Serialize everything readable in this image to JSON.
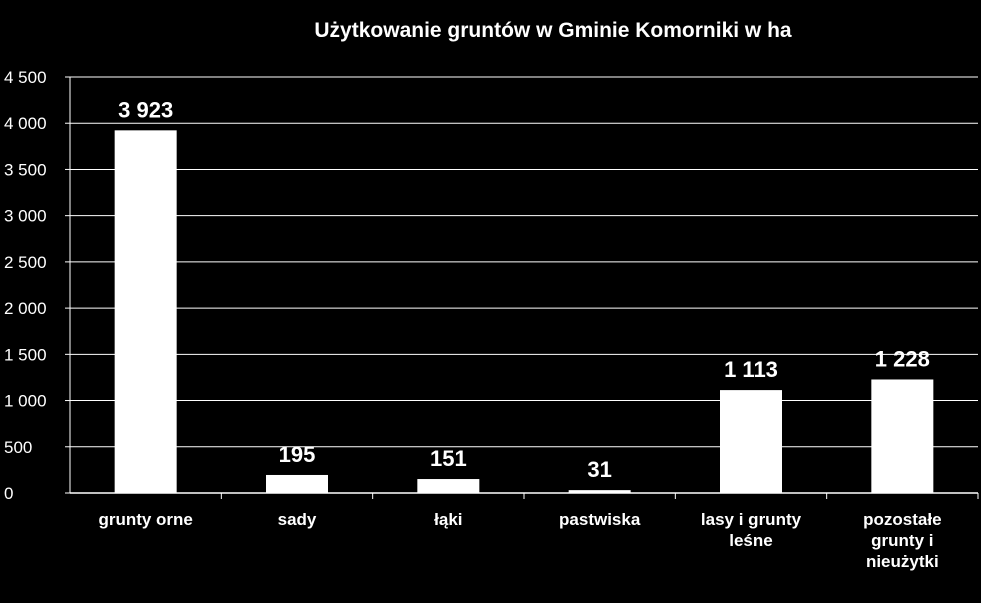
{
  "chart_data": {
    "type": "bar",
    "title": "Użytkowanie gruntów w Gminie Komorniki  w ha",
    "categories": [
      [
        "grunty orne"
      ],
      [
        "sady"
      ],
      [
        "łąki"
      ],
      [
        "pastwiska"
      ],
      [
        "lasy i grunty",
        "leśne"
      ],
      [
        "pozostałe",
        "grunty i",
        "nieużytki"
      ]
    ],
    "values": [
      3923,
      195,
      151,
      31,
      1113,
      1228
    ],
    "value_labels": [
      "3 923",
      "195",
      "151",
      "31",
      "1 113",
      "1 228"
    ],
    "yticks": [
      0,
      500,
      1000,
      1500,
      2000,
      2500,
      3000,
      3500,
      4000,
      4500
    ],
    "ytick_labels": [
      "0",
      "500",
      "1 000",
      "1 500",
      "2 000",
      "2 500",
      "3 000",
      "3 500",
      "4 000",
      "4 500"
    ],
    "ylim": [
      0,
      4500
    ],
    "grid": true,
    "legend": "none",
    "colors": {
      "background": "#000000",
      "bar": "#ffffff",
      "grid": "#ffffff",
      "text": "#ffffff"
    }
  }
}
